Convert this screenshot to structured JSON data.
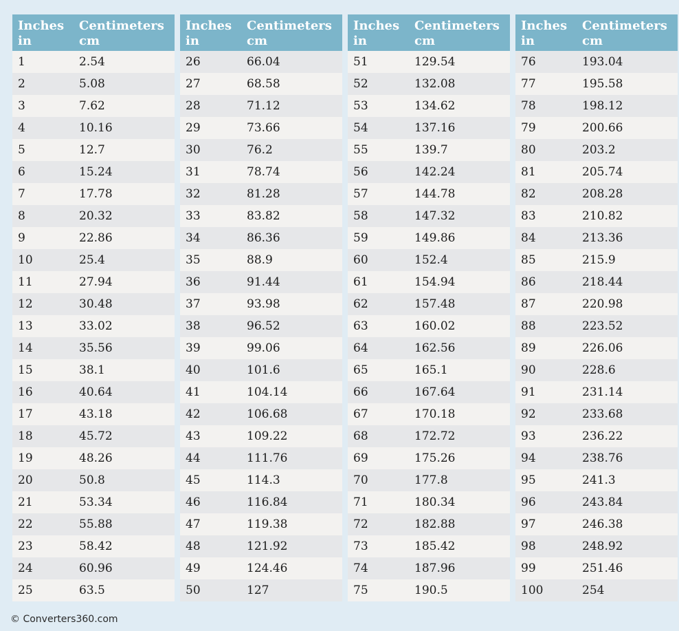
{
  "colors": {
    "page_background": "#e0ecf4",
    "header_bg": "#7cb5ca",
    "header_text": "#ffffff",
    "row_odd_bg": "#f3f2f0",
    "row_even_bg": "#e6e7e9",
    "cell_text": "#1d1d1d"
  },
  "header": {
    "col1_line1": "Inches",
    "col1_line2": "in",
    "col2_line1": "Centimeters",
    "col2_line2": "cm"
  },
  "tables": [
    {
      "rows": [
        [
          "1",
          "2.54"
        ],
        [
          "2",
          "5.08"
        ],
        [
          "3",
          "7.62"
        ],
        [
          "4",
          "10.16"
        ],
        [
          "5",
          "12.7"
        ],
        [
          "6",
          "15.24"
        ],
        [
          "7",
          "17.78"
        ],
        [
          "8",
          "20.32"
        ],
        [
          "9",
          "22.86"
        ],
        [
          "10",
          "25.4"
        ],
        [
          "11",
          "27.94"
        ],
        [
          "12",
          "30.48"
        ],
        [
          "13",
          "33.02"
        ],
        [
          "14",
          "35.56"
        ],
        [
          "15",
          "38.1"
        ],
        [
          "16",
          "40.64"
        ],
        [
          "17",
          "43.18"
        ],
        [
          "18",
          "45.72"
        ],
        [
          "19",
          "48.26"
        ],
        [
          "20",
          "50.8"
        ],
        [
          "21",
          "53.34"
        ],
        [
          "22",
          "55.88"
        ],
        [
          "23",
          "58.42"
        ],
        [
          "24",
          "60.96"
        ],
        [
          "25",
          "63.5"
        ]
      ]
    },
    {
      "rows": [
        [
          "26",
          "66.04"
        ],
        [
          "27",
          "68.58"
        ],
        [
          "28",
          "71.12"
        ],
        [
          "29",
          "73.66"
        ],
        [
          "30",
          "76.2"
        ],
        [
          "31",
          "78.74"
        ],
        [
          "32",
          "81.28"
        ],
        [
          "33",
          "83.82"
        ],
        [
          "34",
          "86.36"
        ],
        [
          "35",
          "88.9"
        ],
        [
          "36",
          "91.44"
        ],
        [
          "37",
          "93.98"
        ],
        [
          "38",
          "96.52"
        ],
        [
          "39",
          "99.06"
        ],
        [
          "40",
          "101.6"
        ],
        [
          "41",
          "104.14"
        ],
        [
          "42",
          "106.68"
        ],
        [
          "43",
          "109.22"
        ],
        [
          "44",
          "111.76"
        ],
        [
          "45",
          "114.3"
        ],
        [
          "46",
          "116.84"
        ],
        [
          "47",
          "119.38"
        ],
        [
          "48",
          "121.92"
        ],
        [
          "49",
          "124.46"
        ],
        [
          "50",
          "127"
        ]
      ]
    },
    {
      "rows": [
        [
          "51",
          "129.54"
        ],
        [
          "52",
          "132.08"
        ],
        [
          "53",
          "134.62"
        ],
        [
          "54",
          "137.16"
        ],
        [
          "55",
          "139.7"
        ],
        [
          "56",
          "142.24"
        ],
        [
          "57",
          "144.78"
        ],
        [
          "58",
          "147.32"
        ],
        [
          "59",
          "149.86"
        ],
        [
          "60",
          "152.4"
        ],
        [
          "61",
          "154.94"
        ],
        [
          "62",
          "157.48"
        ],
        [
          "63",
          "160.02"
        ],
        [
          "64",
          "162.56"
        ],
        [
          "65",
          "165.1"
        ],
        [
          "66",
          "167.64"
        ],
        [
          "67",
          "170.18"
        ],
        [
          "68",
          "172.72"
        ],
        [
          "69",
          "175.26"
        ],
        [
          "70",
          "177.8"
        ],
        [
          "71",
          "180.34"
        ],
        [
          "72",
          "182.88"
        ],
        [
          "73",
          "185.42"
        ],
        [
          "74",
          "187.96"
        ],
        [
          "75",
          "190.5"
        ]
      ]
    },
    {
      "rows": [
        [
          "76",
          "193.04"
        ],
        [
          "77",
          "195.58"
        ],
        [
          "78",
          "198.12"
        ],
        [
          "79",
          "200.66"
        ],
        [
          "80",
          "203.2"
        ],
        [
          "81",
          "205.74"
        ],
        [
          "82",
          "208.28"
        ],
        [
          "83",
          "210.82"
        ],
        [
          "84",
          "213.36"
        ],
        [
          "85",
          "215.9"
        ],
        [
          "86",
          "218.44"
        ],
        [
          "87",
          "220.98"
        ],
        [
          "88",
          "223.52"
        ],
        [
          "89",
          "226.06"
        ],
        [
          "90",
          "228.6"
        ],
        [
          "91",
          "231.14"
        ],
        [
          "92",
          "233.68"
        ],
        [
          "93",
          "236.22"
        ],
        [
          "94",
          "238.76"
        ],
        [
          "95",
          "241.3"
        ],
        [
          "96",
          "243.84"
        ],
        [
          "97",
          "246.38"
        ],
        [
          "98",
          "248.92"
        ],
        [
          "99",
          "251.46"
        ],
        [
          "100",
          "254"
        ]
      ]
    }
  ],
  "footer": {
    "credit": "© Converters360.com"
  }
}
